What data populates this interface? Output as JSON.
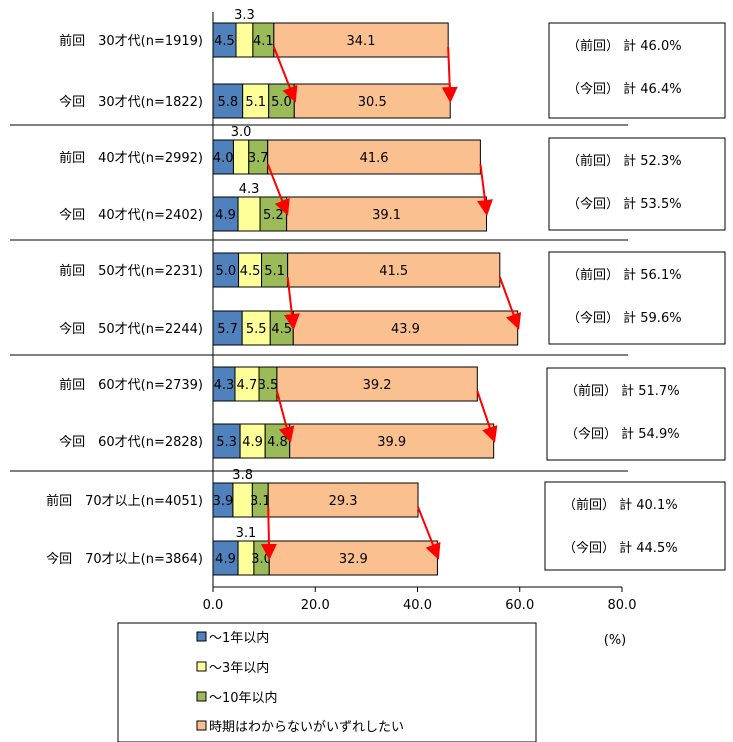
{
  "chart_data": {
    "type": "bar",
    "orientation": "horizontal",
    "stacked": true,
    "categories": [
      "前回　30才代(n=1919)",
      "今回　30才代(n=1822)",
      "前回　40才代(n=2992)",
      "今回　40才代(n=2402)",
      "前回　50才代(n=2231)",
      "今回　50才代(n=2244)",
      "前回　60才代(n=2739)",
      "今回　60才代(n=2828)",
      "前回　70才以上(n=4051)",
      "今回　70才以上(n=3864)"
    ],
    "series": [
      {
        "name": "～1年以内",
        "color": "#4f81bd",
        "values": [
          4.5,
          5.8,
          4.0,
          4.9,
          5.0,
          5.7,
          4.3,
          5.3,
          3.9,
          4.9
        ],
        "labels": [
          "4.5",
          "5.8",
          "4.0",
          "4.9",
          "5.0",
          "5.7",
          "4.3",
          "5.3",
          "3.9",
          "4.9"
        ]
      },
      {
        "name": "～3年以内",
        "color": "#ffff99",
        "values": [
          3.3,
          5.1,
          3.0,
          4.3,
          4.5,
          5.5,
          4.7,
          4.9,
          3.8,
          3.1
        ],
        "labels": [
          "3.3",
          "5.1",
          "3.0",
          "4.3",
          "4.5",
          "5.5",
          "4.7",
          "4.9",
          "3.8",
          "3.1"
        ]
      },
      {
        "name": "～10年以内",
        "color": "#9bbb59",
        "values": [
          4.1,
          5.0,
          3.7,
          5.2,
          5.1,
          4.5,
          3.5,
          4.8,
          3.1,
          3.0
        ],
        "labels": [
          "4.1",
          "5.0",
          "3.7",
          "5.2",
          "5.1",
          "4.5",
          "3.5",
          "4.8",
          "3.1",
          "3.0"
        ]
      },
      {
        "name": "時期はわからないがいずれしたい",
        "color": "#fac090",
        "values": [
          34.1,
          30.5,
          41.6,
          39.1,
          41.5,
          43.9,
          39.2,
          39.9,
          29.3,
          32.9
        ],
        "labels": [
          "34.1",
          "30.5",
          "41.6",
          "39.1",
          "41.5",
          "43.9",
          "39.2",
          "39.9",
          "29.3",
          "32.9"
        ]
      }
    ],
    "totals": [
      {
        "prev": "（前回） 計 46.0%",
        "curr": "（今回） 計 46.4%"
      },
      {
        "prev": "（前回） 計 52.3%",
        "curr": "（今回） 計 53.5%"
      },
      {
        "prev": "（前回） 計 56.1%",
        "curr": "（今回） 計 59.6%"
      },
      {
        "prev": "（前回） 計 51.7%",
        "curr": "（今回） 計 54.9%"
      },
      {
        "prev": "（前回） 計 40.1%",
        "curr": "（今回） 計 44.5%"
      }
    ],
    "xlim": [
      0,
      80
    ],
    "xticks": [
      "0.0",
      "20.0",
      "40.0",
      "60.0",
      "80.0"
    ],
    "xunit": "(%)",
    "arrow_color": "#ff0000",
    "legend_position": "bottom-left"
  }
}
